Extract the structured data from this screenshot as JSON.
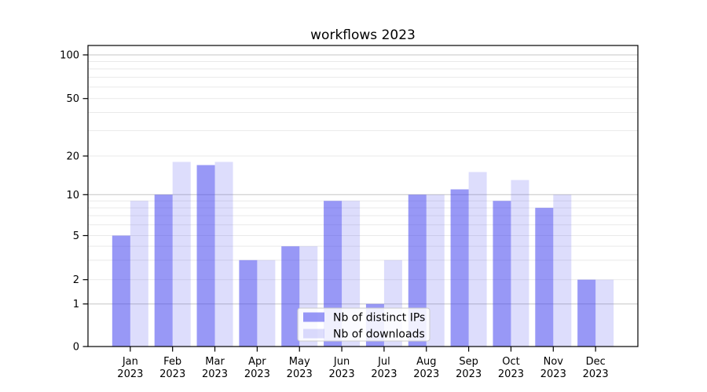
{
  "chart_data": {
    "type": "bar",
    "title": "workflows 2023",
    "x_axis": {
      "months": [
        "Jan",
        "Feb",
        "Mar",
        "Apr",
        "May",
        "Jun",
        "Jul",
        "Aug",
        "Sep",
        "Oct",
        "Nov",
        "Dec"
      ],
      "year": "2023"
    },
    "y_axis": {
      "scale": "symlog",
      "ticks": [
        0,
        1,
        2,
        5,
        10,
        20,
        50,
        100
      ],
      "range": [
        0,
        115
      ],
      "grid": true
    },
    "series": [
      {
        "name": "Nb of distinct IPs",
        "color": "rgba(68,68,238,0.55)",
        "values": [
          5,
          10,
          17,
          3,
          4,
          9,
          1,
          10,
          11,
          9,
          8,
          2
        ]
      },
      {
        "name": "Nb of downloads",
        "color": "rgba(68,68,238,0.18)",
        "values": [
          9,
          18,
          18,
          3,
          4,
          9,
          3,
          10,
          15,
          13,
          10,
          2
        ]
      }
    ],
    "legend": {
      "position": "lower center"
    },
    "colors": {
      "major_grid": "#c6c6c6",
      "minor_grid": "#e9e9e9",
      "spine": "#000000",
      "legend_border": "#cccccc",
      "legend_background": "rgba(255,255,255,0.85)"
    }
  }
}
